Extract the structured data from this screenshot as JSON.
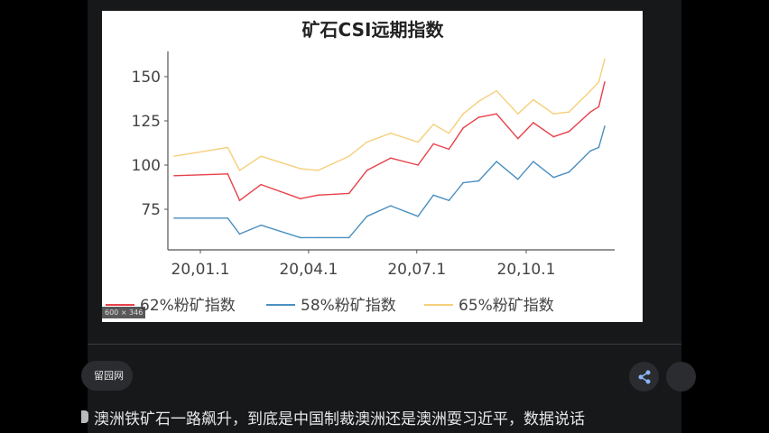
{
  "viewer": {
    "image_size_badge": "600 × 346",
    "source_name": "留园网",
    "caption": "澳洲铁矿石一路飙升，到底是中国制裁澳洲还是澳洲耍习近平，数据说话",
    "share_icon": "share-icon"
  },
  "chart_data": {
    "type": "line",
    "title": "矿石CSI远期指数",
    "xlabel": "",
    "ylabel": "",
    "ylim": [
      50,
      165
    ],
    "yticks": [
      75,
      100,
      125,
      150
    ],
    "xticks": [
      {
        "date": "2020-01-01",
        "label": "20,01.1"
      },
      {
        "date": "2020-04-01",
        "label": "20,04.1"
      },
      {
        "date": "2020-07-01",
        "label": "20,07.1"
      },
      {
        "date": "2020-10-01",
        "label": "20,10.1"
      }
    ],
    "xlim": [
      "2019-11-22",
      "2020-12-25"
    ],
    "grid": false,
    "legend": "bottom",
    "x": [
      "2019-12-10",
      "2020-01-24",
      "2020-02-03",
      "2020-02-21",
      "2020-03-25",
      "2020-04-09",
      "2020-05-05",
      "2020-05-20",
      "2020-06-09",
      "2020-07-02",
      "2020-07-15",
      "2020-07-28",
      "2020-08-09",
      "2020-08-22",
      "2020-09-06",
      "2020-09-24",
      "2020-10-07",
      "2020-10-24",
      "2020-11-06",
      "2020-11-24",
      "2020-12-01",
      "2020-12-06"
    ],
    "series": [
      {
        "name": "62%粉矿指数",
        "color": "#e8404a",
        "values": [
          94,
          95,
          80,
          89,
          81,
          83,
          84,
          97,
          104,
          100,
          112,
          109,
          121,
          127,
          129,
          115,
          124,
          116,
          119,
          130,
          133,
          147
        ]
      },
      {
        "name": "58%粉矿指数",
        "color": "#4a8fc0",
        "values": [
          70,
          70,
          61,
          66,
          59,
          59,
          59,
          71,
          77,
          71,
          83,
          80,
          90,
          91,
          102,
          92,
          102,
          93,
          96,
          108,
          110,
          122
        ]
      },
      {
        "name": "65%粉矿指数",
        "color": "#f5cf7a",
        "values": [
          105,
          110,
          97,
          105,
          98,
          97,
          105,
          113,
          118,
          113,
          123,
          118,
          129,
          136,
          142,
          129,
          137,
          129,
          130,
          142,
          147,
          160
        ]
      }
    ]
  }
}
